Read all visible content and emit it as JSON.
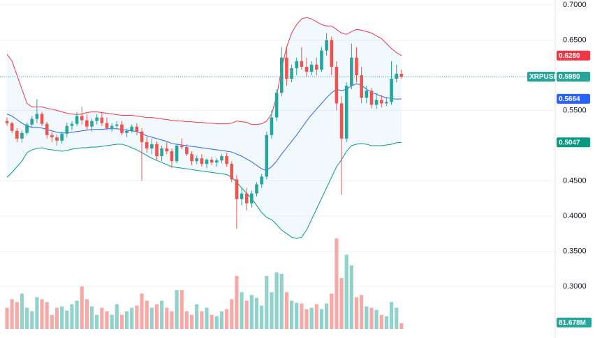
{
  "chart_data": {
    "type": "candlestick",
    "symbol": "XRPUSDT",
    "ylim": [
      0.2267,
      0.7069
    ],
    "yticks": [
      {
        "value": 0.3,
        "label": "0.3000"
      },
      {
        "value": 0.35,
        "label": "0.3500"
      },
      {
        "value": 0.4,
        "label": "0.4000"
      },
      {
        "value": 0.45,
        "label": "0.4500"
      },
      {
        "value": 0.55,
        "label": "0.5500"
      },
      {
        "value": 0.65,
        "label": "0.6500"
      },
      {
        "value": 0.7,
        "label": "0.7000"
      }
    ],
    "grid": true,
    "up_color": "#26a69a",
    "down_color": "#ef5350",
    "open": [
      0.535,
      0.532,
      0.521,
      0.51,
      0.518,
      0.53,
      0.538,
      0.545,
      0.531,
      0.515,
      0.512,
      0.507,
      0.517,
      0.528,
      0.531,
      0.542,
      0.536,
      0.527,
      0.535,
      0.54,
      0.532,
      0.525,
      0.528,
      0.53,
      0.518,
      0.521,
      0.527,
      0.52,
      0.505,
      0.496,
      0.502,
      0.485,
      0.496,
      0.492,
      0.478,
      0.5,
      0.498,
      0.488,
      0.478,
      0.482,
      0.474,
      0.48,
      0.476,
      0.479,
      0.485,
      0.474,
      0.452,
      0.424,
      0.432,
      0.418,
      0.432,
      0.445,
      0.456,
      0.515,
      0.54,
      0.575,
      0.625,
      0.595,
      0.61,
      0.62,
      0.612,
      0.605,
      0.615,
      0.608,
      0.635,
      0.65,
      0.612,
      0.56,
      0.51,
      0.585,
      0.625,
      0.6,
      0.568,
      0.578,
      0.558,
      0.565,
      0.56,
      0.562,
      0.595,
      0.602
    ],
    "high": [
      0.54,
      0.534,
      0.525,
      0.522,
      0.533,
      0.542,
      0.566,
      0.548,
      0.534,
      0.52,
      0.516,
      0.52,
      0.533,
      0.535,
      0.548,
      0.555,
      0.544,
      0.538,
      0.545,
      0.548,
      0.54,
      0.532,
      0.535,
      0.535,
      0.524,
      0.53,
      0.532,
      0.525,
      0.512,
      0.51,
      0.506,
      0.5,
      0.505,
      0.496,
      0.502,
      0.51,
      0.502,
      0.492,
      0.486,
      0.488,
      0.482,
      0.484,
      0.482,
      0.488,
      0.49,
      0.478,
      0.458,
      0.44,
      0.44,
      0.436,
      0.448,
      0.46,
      0.52,
      0.55,
      0.58,
      0.64,
      0.64,
      0.615,
      0.625,
      0.64,
      0.625,
      0.62,
      0.625,
      0.64,
      0.66,
      0.655,
      0.62,
      0.57,
      0.59,
      0.645,
      0.64,
      0.612,
      0.585,
      0.582,
      0.575,
      0.572,
      0.568,
      0.62,
      0.615,
      0.608
    ],
    "low": [
      0.528,
      0.518,
      0.505,
      0.504,
      0.515,
      0.526,
      0.532,
      0.528,
      0.51,
      0.505,
      0.5,
      0.503,
      0.512,
      0.522,
      0.528,
      0.53,
      0.522,
      0.52,
      0.53,
      0.528,
      0.522,
      0.52,
      0.524,
      0.515,
      0.512,
      0.518,
      0.515,
      0.45,
      0.49,
      0.488,
      0.48,
      0.478,
      0.488,
      0.468,
      0.475,
      0.495,
      0.485,
      0.472,
      0.474,
      0.47,
      0.468,
      0.472,
      0.47,
      0.475,
      0.47,
      0.448,
      0.382,
      0.415,
      0.408,
      0.412,
      0.428,
      0.44,
      0.452,
      0.51,
      0.535,
      0.57,
      0.585,
      0.59,
      0.6,
      0.608,
      0.598,
      0.6,
      0.6,
      0.605,
      0.628,
      0.6,
      0.55,
      0.43,
      0.505,
      0.58,
      0.59,
      0.56,
      0.56,
      0.553,
      0.552,
      0.554,
      0.556,
      0.558,
      0.59,
      0.595
    ],
    "close": [
      0.532,
      0.521,
      0.51,
      0.518,
      0.53,
      0.538,
      0.545,
      0.531,
      0.515,
      0.512,
      0.507,
      0.517,
      0.528,
      0.531,
      0.542,
      0.536,
      0.527,
      0.535,
      0.54,
      0.532,
      0.525,
      0.528,
      0.53,
      0.518,
      0.521,
      0.527,
      0.52,
      0.505,
      0.496,
      0.502,
      0.485,
      0.496,
      0.492,
      0.478,
      0.5,
      0.498,
      0.488,
      0.478,
      0.482,
      0.474,
      0.48,
      0.476,
      0.479,
      0.485,
      0.474,
      0.452,
      0.424,
      0.432,
      0.418,
      0.432,
      0.445,
      0.456,
      0.515,
      0.54,
      0.575,
      0.625,
      0.595,
      0.61,
      0.62,
      0.612,
      0.605,
      0.615,
      0.608,
      0.635,
      0.65,
      0.612,
      0.56,
      0.51,
      0.585,
      0.625,
      0.6,
      0.568,
      0.578,
      0.558,
      0.565,
      0.56,
      0.562,
      0.595,
      0.602,
      0.598
    ],
    "close_label": "0.5980",
    "volume": {
      "vlim": [
        0,
        1400
      ],
      "last_label": "81.678M",
      "values": [
        300,
        420,
        380,
        500,
        300,
        250,
        450,
        420,
        380,
        200,
        300,
        320,
        260,
        350,
        400,
        600,
        420,
        320,
        200,
        300,
        250,
        200,
        350,
        200,
        250,
        300,
        330,
        500,
        400,
        300,
        350,
        400,
        300,
        250,
        550,
        550,
        250,
        200,
        350,
        250,
        300,
        200,
        180,
        250,
        280,
        420,
        750,
        520,
        400,
        480,
        440,
        330,
        750,
        520,
        800,
        780,
        520,
        400,
        370,
        360,
        280,
        300,
        350,
        280,
        360,
        500,
        1280,
        720,
        1050,
        900,
        450,
        480,
        320,
        300,
        270,
        200,
        180,
        380,
        300,
        81.678
      ]
    },
    "bands": [
      {
        "color": "#f23645",
        "last_label": "0.6280",
        "values": [
          0.63,
          0.62,
          0.6,
          0.58,
          0.56,
          0.555,
          0.555,
          0.555,
          0.553,
          0.552,
          0.55,
          0.548,
          0.546,
          0.545,
          0.544,
          0.545,
          0.547,
          0.548,
          0.548,
          0.547,
          0.546,
          0.545,
          0.544,
          0.543,
          0.543,
          0.543,
          0.542,
          0.541,
          0.54,
          0.54,
          0.539,
          0.538,
          0.537,
          0.536,
          0.535,
          0.535,
          0.534,
          0.534,
          0.533,
          0.533,
          0.532,
          0.532,
          0.531,
          0.531,
          0.531,
          0.532,
          0.535,
          0.534,
          0.533,
          0.53,
          0.53,
          0.531,
          0.535,
          0.545,
          0.57,
          0.61,
          0.64,
          0.66,
          0.672,
          0.68,
          0.682,
          0.68,
          0.676,
          0.672,
          0.67,
          0.67,
          0.665,
          0.66,
          0.658,
          0.662,
          0.665,
          0.664,
          0.662,
          0.66,
          0.656,
          0.652,
          0.645,
          0.638,
          0.632,
          0.628
        ]
      },
      {
        "color": "#2962ff",
        "last_label": "0.5664",
        "values": [
          0.545,
          0.542,
          0.537,
          0.532,
          0.528,
          0.526,
          0.526,
          0.525,
          0.523,
          0.521,
          0.519,
          0.518,
          0.518,
          0.519,
          0.52,
          0.521,
          0.522,
          0.523,
          0.523,
          0.523,
          0.524,
          0.524,
          0.524,
          0.523,
          0.522,
          0.521,
          0.52,
          0.517,
          0.514,
          0.512,
          0.51,
          0.508,
          0.506,
          0.503,
          0.502,
          0.501,
          0.5,
          0.499,
          0.498,
          0.497,
          0.496,
          0.495,
          0.494,
          0.493,
          0.492,
          0.491,
          0.488,
          0.485,
          0.481,
          0.477,
          0.472,
          0.467,
          0.465,
          0.47,
          0.478,
          0.488,
          0.497,
          0.506,
          0.515,
          0.525,
          0.535,
          0.544,
          0.552,
          0.56,
          0.568,
          0.575,
          0.58,
          0.578,
          0.58,
          0.585,
          0.588,
          0.586,
          0.58,
          0.576,
          0.573,
          0.57,
          0.568,
          0.567,
          0.566,
          0.5664
        ]
      },
      {
        "color": "#089981",
        "last_label": "0.5047",
        "values": [
          0.455,
          0.462,
          0.47,
          0.478,
          0.49,
          0.494,
          0.496,
          0.497,
          0.495,
          0.494,
          0.493,
          0.492,
          0.493,
          0.495,
          0.496,
          0.497,
          0.497,
          0.498,
          0.498,
          0.499,
          0.5,
          0.501,
          0.502,
          0.502,
          0.5,
          0.497,
          0.494,
          0.49,
          0.486,
          0.482,
          0.479,
          0.476,
          0.473,
          0.47,
          0.469,
          0.468,
          0.467,
          0.466,
          0.465,
          0.464,
          0.463,
          0.462,
          0.461,
          0.46,
          0.459,
          0.455,
          0.448,
          0.44,
          0.432,
          0.425,
          0.415,
          0.405,
          0.398,
          0.395,
          0.388,
          0.38,
          0.375,
          0.37,
          0.368,
          0.37,
          0.38,
          0.395,
          0.41,
          0.425,
          0.44,
          0.455,
          0.47,
          0.48,
          0.492,
          0.5,
          0.502,
          0.503,
          0.502,
          0.5,
          0.5,
          0.5,
          0.501,
          0.502,
          0.504,
          0.5047
        ]
      }
    ]
  }
}
